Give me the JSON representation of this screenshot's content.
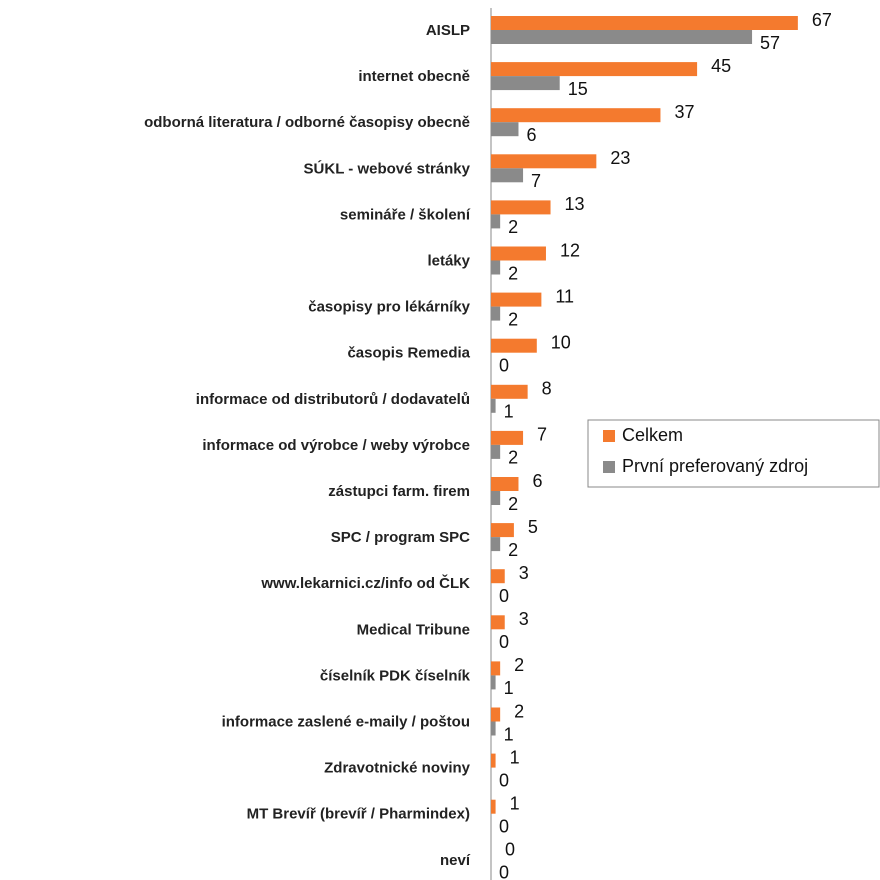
{
  "chart_data": {
    "type": "hbar",
    "categories": [
      "AISLP",
      "internet obecně",
      "odborná literatura / odborné časopisy obecně",
      "SÚKL - webové stránky",
      "semináře / školení",
      "letáky",
      "časopisy pro lékárníky",
      "časopis Remedia",
      "informace od distributorů / dodavatelů",
      "informace od výrobce / weby výrobce",
      "zástupci farm. firem",
      "SPC / program SPC",
      "www.lekarnici.cz/info od ČLK",
      "Medical Tribune",
      "číselník PDK číselník",
      "informace zaslené e-maily / poštou",
      "Zdravotnické noviny",
      "MT Brevíř (brevíř / Pharmindex)",
      "neví"
    ],
    "series": [
      {
        "name": "Celkem",
        "color": "#f47a2e",
        "values": [
          67,
          45,
          37,
          23,
          13,
          12,
          11,
          10,
          8,
          7,
          6,
          5,
          3,
          3,
          2,
          2,
          1,
          1,
          0
        ]
      },
      {
        "name": "První preferovaný zdroj",
        "color": "#8a8a8a",
        "values": [
          57,
          15,
          6,
          7,
          2,
          2,
          2,
          0,
          1,
          2,
          2,
          2,
          0,
          0,
          1,
          1,
          0,
          0,
          0
        ]
      }
    ],
    "legend": "right"
  }
}
